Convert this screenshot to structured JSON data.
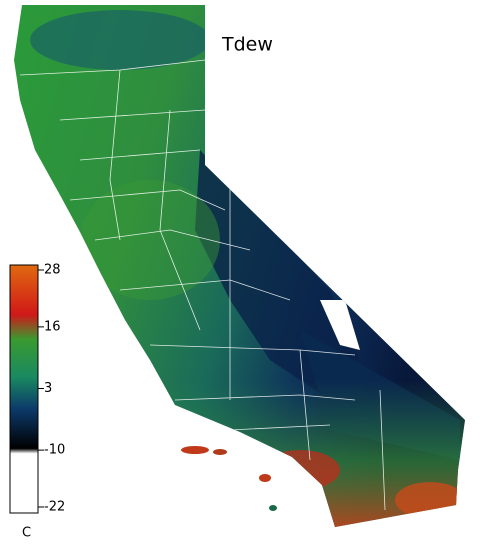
{
  "title": "Tdew",
  "colorbar": {
    "unit": "C",
    "range": [
      -22,
      28
    ],
    "ticks": [
      28,
      16,
      3,
      -10,
      -22
    ]
  }
}
